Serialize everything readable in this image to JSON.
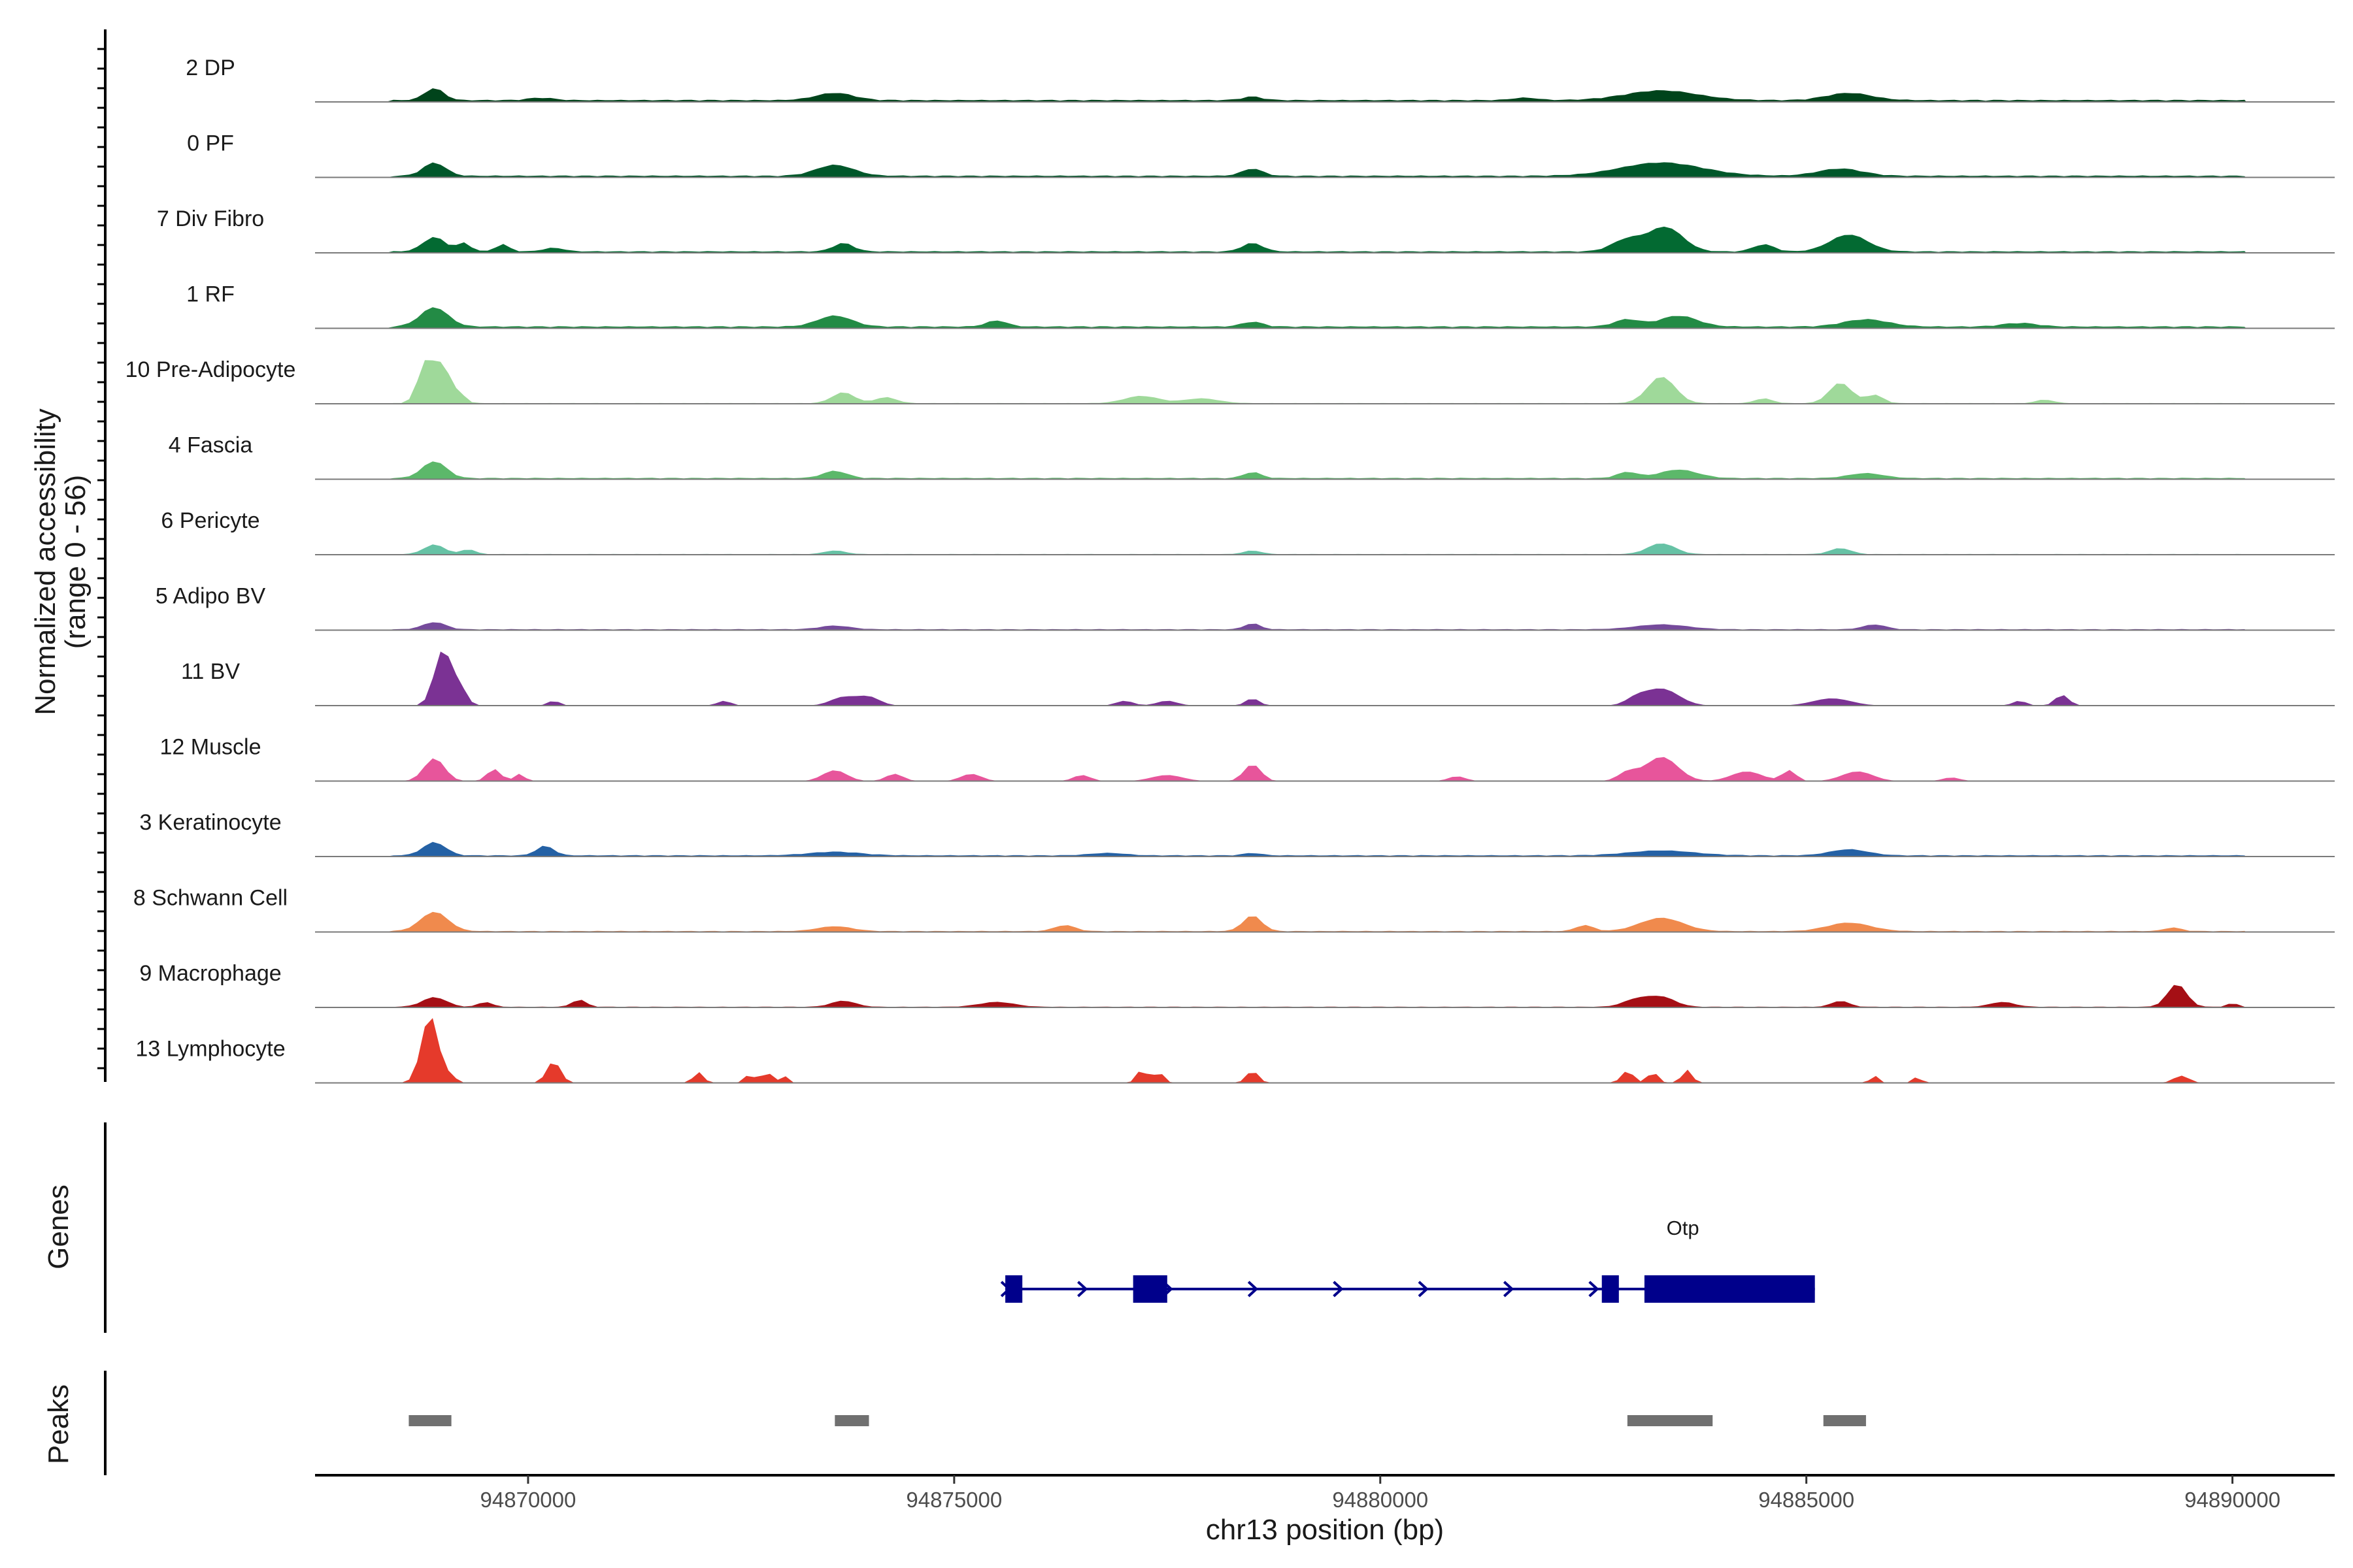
{
  "chart_data": {
    "type": "area",
    "title": "",
    "ylabel_line1": "Normalized accessibility",
    "ylabel_line2": "(range 0 - 56)",
    "y_range": [
      0,
      56
    ],
    "xlabel": "chr13 position (bp)",
    "x_range": [
      94867500,
      94891200
    ],
    "x_ticks": [
      94870000,
      94875000,
      94880000,
      94885000,
      94890000
    ],
    "x_tick_labels": [
      "94870000",
      "94875000",
      "94880000",
      "94885000",
      "94890000"
    ],
    "panel_labels": {
      "genes": "Genes",
      "peaks": "Peaks"
    },
    "tracks": [
      {
        "name": "2 DP",
        "color": "#00441b",
        "peaks": [
          [
            94868900,
            10,
            110
          ],
          [
            94870150,
            2,
            150
          ],
          [
            94873600,
            6,
            220
          ],
          [
            94878500,
            3,
            120
          ],
          [
            94881700,
            2,
            150
          ],
          [
            94883300,
            8,
            420
          ],
          [
            94885500,
            6,
            260
          ]
        ],
        "bg": 1.8
      },
      {
        "name": "0 PF",
        "color": "#00572a",
        "peaks": [
          [
            94868900,
            11,
            130
          ],
          [
            94873600,
            9,
            220
          ],
          [
            94878500,
            6,
            120
          ],
          [
            94883300,
            11,
            480
          ],
          [
            94885400,
            6,
            260
          ]
        ],
        "bg": 1.6
      },
      {
        "name": "7 Div Fibro",
        "color": "#036a32",
        "peaks": [
          [
            94868900,
            12,
            130
          ],
          [
            94869250,
            7,
            80
          ],
          [
            94869700,
            6,
            80
          ],
          [
            94870300,
            3,
            120
          ],
          [
            94873700,
            7,
            120
          ],
          [
            94878500,
            7,
            120
          ],
          [
            94882900,
            10,
            180
          ],
          [
            94883350,
            20,
            200
          ],
          [
            94884500,
            6,
            120
          ],
          [
            94885500,
            14,
            220
          ]
        ],
        "bg": 1.4
      },
      {
        "name": "1 RF",
        "color": "#238b45",
        "peaks": [
          [
            94868900,
            16,
            160
          ],
          [
            94873600,
            9,
            200
          ],
          [
            94875500,
            5,
            120
          ],
          [
            94878500,
            4,
            120
          ],
          [
            94882900,
            6,
            150
          ],
          [
            94883500,
            9,
            220
          ],
          [
            94885700,
            6,
            260
          ],
          [
            94887500,
            3,
            200
          ]
        ],
        "bg": 1.8
      },
      {
        "name": "10 Pre-Adipocyte",
        "color": "#9fd99a",
        "peaks": [
          [
            94868800,
            34,
            90
          ],
          [
            94869000,
            30,
            90
          ],
          [
            94869200,
            7,
            70
          ],
          [
            94873700,
            9,
            130
          ],
          [
            94874200,
            5,
            120
          ],
          [
            94877200,
            6,
            200
          ],
          [
            94877900,
            4,
            200
          ],
          [
            94883300,
            22,
            160
          ],
          [
            94884500,
            4,
            100
          ],
          [
            94885400,
            17,
            130
          ],
          [
            94885800,
            7,
            100
          ],
          [
            94887800,
            3,
            100
          ]
        ],
        "bg": 0.6
      },
      {
        "name": "4 Fascia",
        "color": "#5cb86a",
        "peaks": [
          [
            94868900,
            14,
            140
          ],
          [
            94873600,
            6,
            140
          ],
          [
            94878500,
            5,
            100
          ],
          [
            94882900,
            5,
            120
          ],
          [
            94883500,
            7,
            220
          ],
          [
            94885700,
            4,
            200
          ]
        ],
        "bg": 1.2
      },
      {
        "name": "6 Pericyte",
        "color": "#66c2a5",
        "peaks": [
          [
            94868900,
            8,
            120
          ],
          [
            94869300,
            4,
            80
          ],
          [
            94873600,
            3,
            120
          ],
          [
            94878500,
            3,
            100
          ],
          [
            94883300,
            9,
            160
          ],
          [
            94885400,
            5,
            120
          ]
        ],
        "bg": 0.6
      },
      {
        "name": "5 Adipo BV",
        "color": "#754a9b",
        "peaks": [
          [
            94868900,
            6,
            130
          ],
          [
            94873600,
            3,
            180
          ],
          [
            94878500,
            5,
            90
          ],
          [
            94883300,
            4,
            300
          ],
          [
            94885800,
            4,
            130
          ]
        ],
        "bg": 0.9
      },
      {
        "name": "11 BV",
        "color": "#7b3294",
        "peaks": [
          [
            94869000,
            46,
            100
          ],
          [
            94869200,
            14,
            80
          ],
          [
            94870300,
            4,
            70
          ],
          [
            94872300,
            4,
            80
          ],
          [
            94873700,
            7,
            150
          ],
          [
            94874000,
            7,
            130
          ],
          [
            94877000,
            4,
            100
          ],
          [
            94877500,
            4,
            120
          ],
          [
            94878500,
            6,
            80
          ],
          [
            94883000,
            5,
            120
          ],
          [
            94883300,
            14,
            200
          ],
          [
            94885300,
            6,
            220
          ],
          [
            94887500,
            4,
            80
          ],
          [
            94888000,
            9,
            80
          ]
        ],
        "bg": 0.0
      },
      {
        "name": "12 Muscle",
        "color": "#e7559b",
        "peaks": [
          [
            94868900,
            19,
            120
          ],
          [
            94869600,
            10,
            80
          ],
          [
            94869900,
            6,
            60
          ],
          [
            94873600,
            9,
            140
          ],
          [
            94874300,
            6,
            100
          ],
          [
            94875200,
            6,
            120
          ],
          [
            94876500,
            5,
            100
          ],
          [
            94877500,
            5,
            180
          ],
          [
            94878500,
            14,
            100
          ],
          [
            94880900,
            4,
            100
          ],
          [
            94882900,
            7,
            110
          ],
          [
            94883300,
            20,
            190
          ],
          [
            94884300,
            8,
            180
          ],
          [
            94884800,
            9,
            80
          ],
          [
            94885600,
            8,
            180
          ],
          [
            94886700,
            3,
            100
          ]
        ],
        "bg": 0.0
      },
      {
        "name": "3 Keratinocyte",
        "color": "#2461a5",
        "peaks": [
          [
            94868900,
            11,
            130
          ],
          [
            94870200,
            8,
            100
          ],
          [
            94873600,
            3,
            300
          ],
          [
            94876800,
            2,
            200
          ],
          [
            94878500,
            2,
            100
          ],
          [
            94883300,
            4,
            380
          ],
          [
            94885500,
            5,
            220
          ]
        ],
        "bg": 1.2
      },
      {
        "name": "8 Schwann Cell",
        "color": "#f08a4d",
        "peaks": [
          [
            94868900,
            16,
            160
          ],
          [
            94873600,
            4,
            200
          ],
          [
            94876300,
            5,
            120
          ],
          [
            94878500,
            13,
            110
          ],
          [
            94882400,
            5,
            100
          ],
          [
            94883300,
            11,
            250
          ],
          [
            94885500,
            7,
            250
          ],
          [
            94889300,
            3,
            100
          ]
        ],
        "bg": 0.9
      },
      {
        "name": "9 Macrophage",
        "color": "#a50f15",
        "peaks": [
          [
            94868900,
            8,
            140
          ],
          [
            94869500,
            4,
            80
          ],
          [
            94870600,
            6,
            80
          ],
          [
            94873700,
            5,
            140
          ],
          [
            94875500,
            4,
            200
          ],
          [
            94883000,
            6,
            150
          ],
          [
            94883300,
            8,
            160
          ],
          [
            94885400,
            5,
            100
          ],
          [
            94887300,
            4,
            140
          ],
          [
            94889350,
            19,
            110
          ],
          [
            94890000,
            3,
            60
          ]
        ],
        "bg": 0.7
      },
      {
        "name": "13 Lymphocyte",
        "color": "#e53a2b",
        "peaks": [
          [
            94868850,
            56,
            100
          ],
          [
            94869100,
            6,
            50
          ],
          [
            94870300,
            18,
            80
          ],
          [
            94872000,
            9,
            60
          ],
          [
            94872600,
            7,
            60
          ],
          [
            94872800,
            10,
            50
          ],
          [
            94873000,
            6,
            50
          ],
          [
            94877200,
            11,
            60
          ],
          [
            94877400,
            9,
            60
          ],
          [
            94878500,
            10,
            70
          ],
          [
            94882900,
            10,
            70
          ],
          [
            94883200,
            9,
            60
          ],
          [
            94883600,
            11,
            60
          ],
          [
            94885800,
            6,
            50
          ],
          [
            94886300,
            5,
            50
          ],
          [
            94889400,
            6,
            90
          ]
        ],
        "bg": 0.0
      }
    ],
    "gene": {
      "name": "Otp",
      "color": "#00008b",
      "strand": "+",
      "start": 94875600,
      "end": 94885100,
      "exons": [
        [
          94875600,
          94875800
        ],
        [
          94877100,
          94877500
        ],
        [
          94882600,
          94882800
        ],
        [
          94883100,
          94885100
        ]
      ],
      "arrows": [
        94875600,
        94876500,
        94877500,
        94878500,
        94879500,
        94880500,
        94881500,
        94882500
      ]
    },
    "peaks_track": {
      "color": "#707070",
      "regions": [
        [
          94868600,
          94869100
        ],
        [
          94873600,
          94874000
        ],
        [
          94882900,
          94883900
        ],
        [
          94885200,
          94885700
        ]
      ]
    }
  }
}
